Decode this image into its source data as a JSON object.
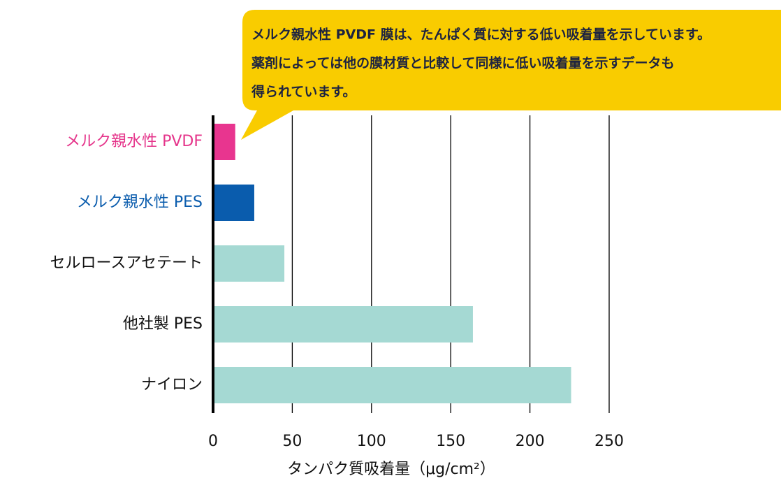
{
  "chart_data": {
    "type": "barh",
    "annotation": [
      "メルク親水性 PVDF 膜は、たんぱく質に対する低い吸着量を示しています。",
      "薬剤によっては他の膜材質と比較して同様に低い吸着量を示すデータも",
      "得られています。"
    ],
    "categories": [
      "メルク親水性 PVDF",
      "メルク親水性 PES",
      "セルロースアセテート",
      "他社製 PES",
      "ナイロン"
    ],
    "values": [
      14,
      26,
      45,
      164,
      226
    ],
    "colors": [
      "#e8358f",
      "#0a5cad",
      "#a5d9d3",
      "#a5d9d3",
      "#a5d9d3"
    ],
    "label_colors": [
      "#e5358b",
      "#0a5cad",
      "#111111",
      "#111111",
      "#111111"
    ],
    "xlabel": "タンパク質吸着量（μg/cm²）",
    "xlim": [
      0,
      250
    ],
    "xticks": [
      0,
      50,
      100,
      150,
      200,
      250
    ],
    "grid": true
  }
}
